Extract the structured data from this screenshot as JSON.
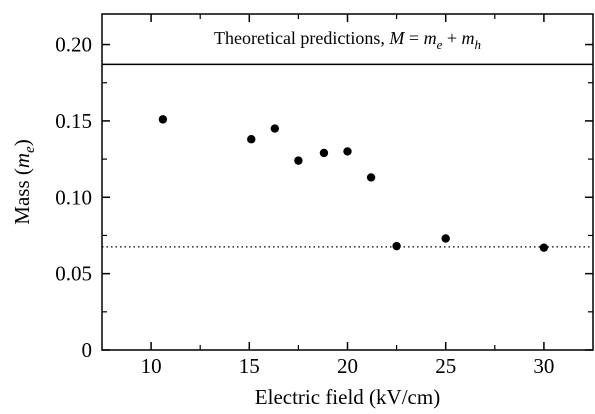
{
  "chart_data": {
    "type": "scatter",
    "title": "",
    "xlabel": "Electric field  (kV/cm)",
    "ylabel": "Mass (m_e)",
    "ylabel_parts": {
      "main": "Mass (",
      "italic": "m",
      "sub": "e",
      "close": ")"
    },
    "xlim": [
      7.5,
      32.5
    ],
    "ylim": [
      0,
      0.22
    ],
    "x_ticks": [
      10,
      15,
      20,
      25,
      30
    ],
    "x_minor_ticks": [
      12.5,
      17.5,
      22.5,
      27.5
    ],
    "y_ticks": [
      0,
      0.05,
      0.1,
      0.15,
      0.2
    ],
    "y_minor_ticks": [
      0.025,
      0.075,
      0.125,
      0.175
    ],
    "x_tick_labels": [
      "10",
      "15",
      "20",
      "25",
      "30"
    ],
    "y_tick_labels": [
      "0",
      "0.05",
      "0.10",
      "0.15",
      "0.20"
    ],
    "series": [
      {
        "x": [
          10.6,
          15.1,
          16.3,
          17.5,
          18.8,
          20.0,
          21.2,
          22.5,
          25.0,
          30.0
        ],
        "y": [
          0.151,
          0.138,
          0.145,
          0.124,
          0.129,
          0.13,
          0.113,
          0.068,
          0.073,
          0.067
        ]
      }
    ],
    "reference_lines": [
      {
        "y": 0.187,
        "style": "solid"
      },
      {
        "y": 0.0675,
        "style": "dotted"
      }
    ],
    "annotation": {
      "text": "Theoretical predictions, M = m_e + m_h",
      "parts": {
        "prefix": "Theoretical predictions, ",
        "M": "M",
        "eq": " = ",
        "m1": "m",
        "s1": "e",
        "plus": " + ",
        "m2": "m",
        "s2": "h"
      }
    },
    "grid": false,
    "legend": "none",
    "colors": {
      "points": "#000000",
      "axes": "#000000",
      "background": "#ffffff"
    }
  }
}
